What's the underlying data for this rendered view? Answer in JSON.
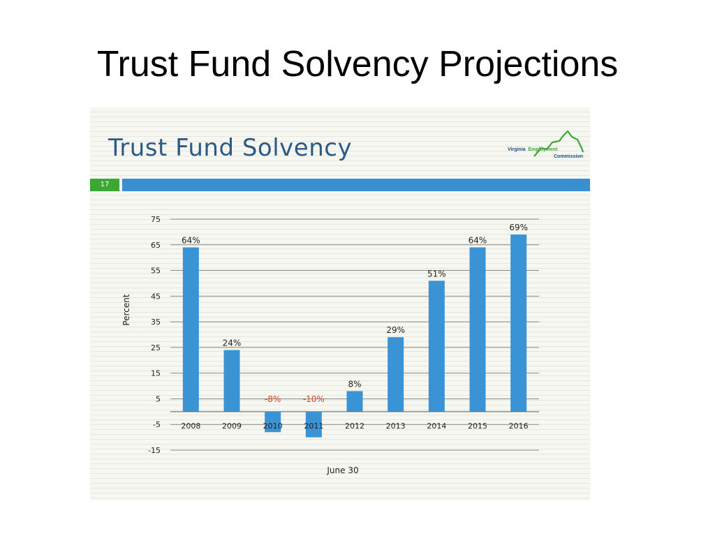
{
  "slide": {
    "title": "Trust Fund Solvency Projections"
  },
  "panel": {
    "title": "Trust Fund Solvency",
    "slide_number": "17",
    "logo": {
      "line1_a": "Virginia",
      "line1_b": "Employment",
      "line2": "Commission",
      "green": "#3aa832",
      "blue": "#1f4f88"
    }
  },
  "chart_data": {
    "type": "bar",
    "categories": [
      "2008",
      "2009",
      "2010",
      "2011",
      "2012",
      "2013",
      "2014",
      "2015",
      "2016"
    ],
    "values": [
      64,
      24,
      -8,
      -10,
      8,
      29,
      51,
      64,
      69
    ],
    "data_labels": [
      "64%",
      "24%",
      "-8%",
      "-10%",
      "8%",
      "29%",
      "51%",
      "64%",
      "69%"
    ],
    "xlabel": "June 30",
    "ylabel": "Percent",
    "ylim": [
      -15,
      75
    ],
    "yticks": [
      75,
      65,
      55,
      45,
      35,
      25,
      15,
      5,
      -5,
      -15
    ],
    "grid": true,
    "colors": {
      "bar": "#3a93d4",
      "negative_label": "#e8412a",
      "label": "#222222",
      "grid": "#888888"
    }
  }
}
